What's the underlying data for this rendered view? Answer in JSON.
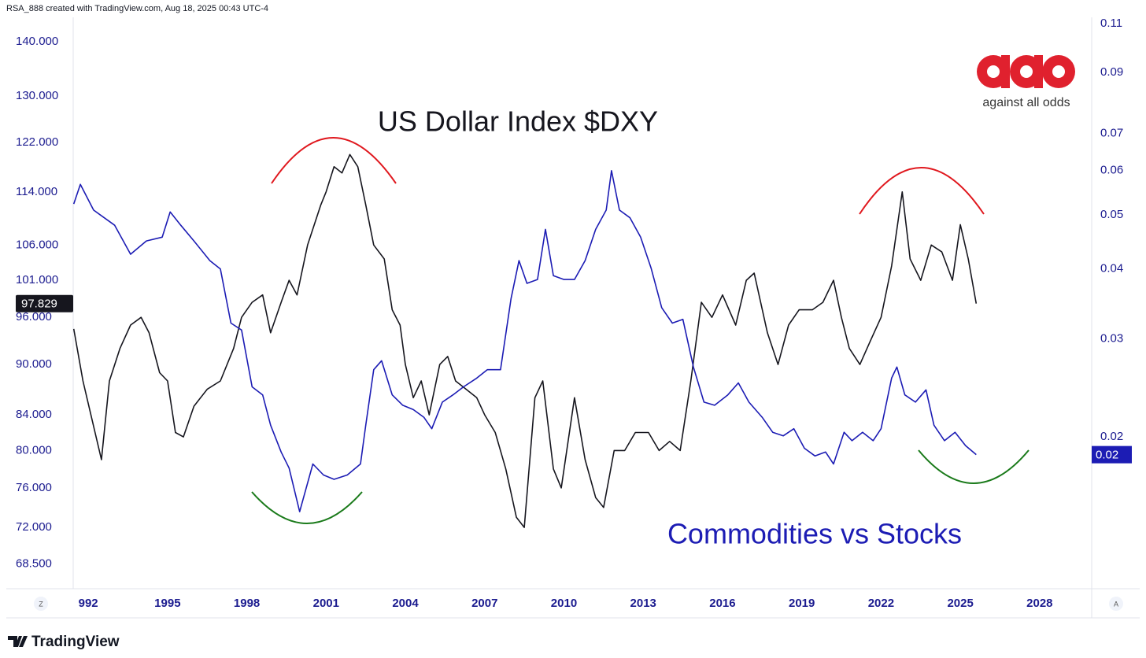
{
  "header": "RSA_888 created with TradingView.com, Aug 18, 2025 00:43 UTC-4",
  "logo_text": "against all odds",
  "footer": "TradingView",
  "buttons": [
    "Z",
    "A"
  ],
  "chart_data": {
    "type": "line",
    "annotations": [
      "US Dollar Index $DXY",
      "Commodities vs Stocks"
    ],
    "xlim": [
      1991.43,
      2029.97
    ],
    "xticks": [
      {
        "value": 1992,
        "label": "992"
      },
      1995,
      1998,
      2001,
      2004,
      2007,
      2010,
      2013,
      2016,
      2019,
      2022,
      2025,
      2028
    ],
    "ylim": [
      66.2,
      144.8
    ],
    "yticks": [
      {
        "value": 140,
        "label": "140.000"
      },
      {
        "value": 130,
        "label": "130.000"
      },
      {
        "value": 122,
        "label": "122.000"
      },
      {
        "value": 114,
        "label": "114.000"
      },
      {
        "value": 106,
        "label": "106.000"
      },
      {
        "value": 101,
        "label": "101.000"
      },
      {
        "value": 96,
        "label": "96.000"
      },
      {
        "value": 90,
        "label": "90.000"
      },
      {
        "value": 84,
        "label": "84.000"
      },
      {
        "value": 80,
        "label": "80.000"
      },
      {
        "value": 76,
        "label": "76.000"
      },
      {
        "value": 72,
        "label": "72.000"
      },
      {
        "value": 68.5,
        "label": "68.500"
      }
    ],
    "y2lim": [
      0.0107,
      0.1129
    ],
    "y2ticks": [
      0.11,
      0.09,
      0.07,
      0.06,
      0.05,
      0.04,
      0.03,
      0.02
    ],
    "log_scale": true,
    "grid": false,
    "series": [
      {
        "color": "#16161e",
        "axis": "y",
        "last_value_label": "97.829",
        "x": [
          1991.45,
          1991.8,
          1992.1,
          1992.5,
          1992.8,
          1993.2,
          1993.6,
          1994.0,
          1994.3,
          1994.7,
          1995.0,
          1995.3,
          1995.6,
          1996.0,
          1996.5,
          1997.0,
          1997.5,
          1997.8,
          1998.2,
          1998.6,
          1998.9,
          1999.3,
          1999.6,
          1999.9,
          2000.3,
          2000.8,
          2001.0,
          2001.3,
          2001.6,
          2001.9,
          2002.2,
          2002.5,
          2002.8,
          2003.2,
          2003.5,
          2003.8,
          2004.0,
          2004.3,
          2004.6,
          2004.9,
          2005.3,
          2005.6,
          2005.9,
          2006.3,
          2006.7,
          2007.0,
          2007.4,
          2007.8,
          2008.2,
          2008.5,
          2008.9,
          2009.2,
          2009.6,
          2009.9,
          2010.4,
          2010.8,
          2011.2,
          2011.5,
          2011.9,
          2012.3,
          2012.7,
          2013.2,
          2013.6,
          2014.0,
          2014.4,
          2014.8,
          2015.2,
          2015.6,
          2016.0,
          2016.5,
          2016.9,
          2017.2,
          2017.7,
          2018.1,
          2018.5,
          2018.9,
          2019.4,
          2019.8,
          2020.2,
          2020.5,
          2020.8,
          2021.2,
          2021.6,
          2022.0,
          2022.4,
          2022.8,
          2023.1,
          2023.5,
          2023.9,
          2024.3,
          2024.7,
          2025.0,
          2025.3,
          2025.6
        ],
        "values": [
          94.5,
          88,
          84,
          79,
          88,
          92,
          95,
          96,
          94,
          89,
          88,
          82,
          81.5,
          85,
          87,
          88,
          92,
          96,
          98,
          99,
          94,
          98,
          101,
          99,
          106,
          112,
          114,
          118,
          117,
          120,
          118,
          112,
          106,
          104,
          97,
          95,
          90,
          86,
          88,
          84,
          90,
          91,
          88,
          87,
          86,
          84,
          82,
          78,
          73,
          72,
          86,
          88,
          78,
          76,
          86,
          79,
          75,
          74,
          80,
          80,
          82,
          82,
          80,
          81,
          80,
          88,
          98,
          96,
          99,
          95,
          101,
          102,
          94,
          90,
          95,
          97,
          97,
          98,
          101,
          96,
          92,
          90,
          93,
          96,
          103,
          114,
          104,
          101,
          106,
          105,
          101,
          109,
          104,
          97.829
        ]
      },
      {
        "color": "#1c1cb4",
        "axis": "y2",
        "last_value_label": "0.02",
        "x": [
          1991.45,
          1991.7,
          1992.2,
          1993.0,
          1993.6,
          1994.2,
          1994.8,
          1995.1,
          1995.5,
          1996.0,
          1996.6,
          1997.0,
          1997.4,
          1997.8,
          1998.2,
          1998.6,
          1998.9,
          1999.3,
          1999.6,
          2000.0,
          2000.5,
          2000.9,
          2001.3,
          2001.8,
          2002.3,
          2002.5,
          2002.8,
          2003.1,
          2003.5,
          2003.9,
          2004.3,
          2004.7,
          2005.0,
          2005.4,
          2005.8,
          2006.2,
          2006.7,
          2007.1,
          2007.6,
          2008.0,
          2008.3,
          2008.6,
          2009.0,
          2009.3,
          2009.6,
          2010.0,
          2010.4,
          2010.8,
          2011.2,
          2011.6,
          2011.8,
          2012.1,
          2012.5,
          2012.9,
          2013.3,
          2013.7,
          2014.1,
          2014.5,
          2014.9,
          2015.3,
          2015.7,
          2016.2,
          2016.6,
          2017.0,
          2017.5,
          2017.9,
          2018.3,
          2018.7,
          2019.1,
          2019.5,
          2019.9,
          2020.2,
          2020.6,
          2020.9,
          2021.3,
          2021.7,
          2022.0,
          2022.4,
          2022.6,
          2022.9,
          2023.3,
          2023.7,
          2024.0,
          2024.4,
          2024.8,
          2025.2,
          2025.6
        ],
        "values": [
          0.0523,
          0.0567,
          0.051,
          0.0479,
          0.0425,
          0.0449,
          0.0456,
          0.0506,
          0.0479,
          0.0449,
          0.0414,
          0.04,
          0.032,
          0.0311,
          0.0246,
          0.0238,
          0.021,
          0.0188,
          0.0176,
          0.0147,
          0.0179,
          0.0171,
          0.0168,
          0.0171,
          0.0179,
          0.021,
          0.0264,
          0.0274,
          0.0238,
          0.0228,
          0.0224,
          0.0217,
          0.0207,
          0.0231,
          0.0238,
          0.0246,
          0.0255,
          0.0264,
          0.0264,
          0.0354,
          0.0414,
          0.0377,
          0.0383,
          0.0471,
          0.0389,
          0.0383,
          0.0383,
          0.0414,
          0.0471,
          0.051,
          0.06,
          0.051,
          0.0494,
          0.0456,
          0.0401,
          0.0341,
          0.032,
          0.0325,
          0.0267,
          0.0231,
          0.0228,
          0.0238,
          0.025,
          0.0231,
          0.0217,
          0.0204,
          0.0201,
          0.0207,
          0.0191,
          0.0185,
          0.0188,
          0.0179,
          0.0204,
          0.0197,
          0.0204,
          0.0197,
          0.0207,
          0.0255,
          0.0267,
          0.0238,
          0.0231,
          0.0243,
          0.021,
          0.0197,
          0.0204,
          0.0193,
          0.0186
        ]
      }
    ]
  }
}
